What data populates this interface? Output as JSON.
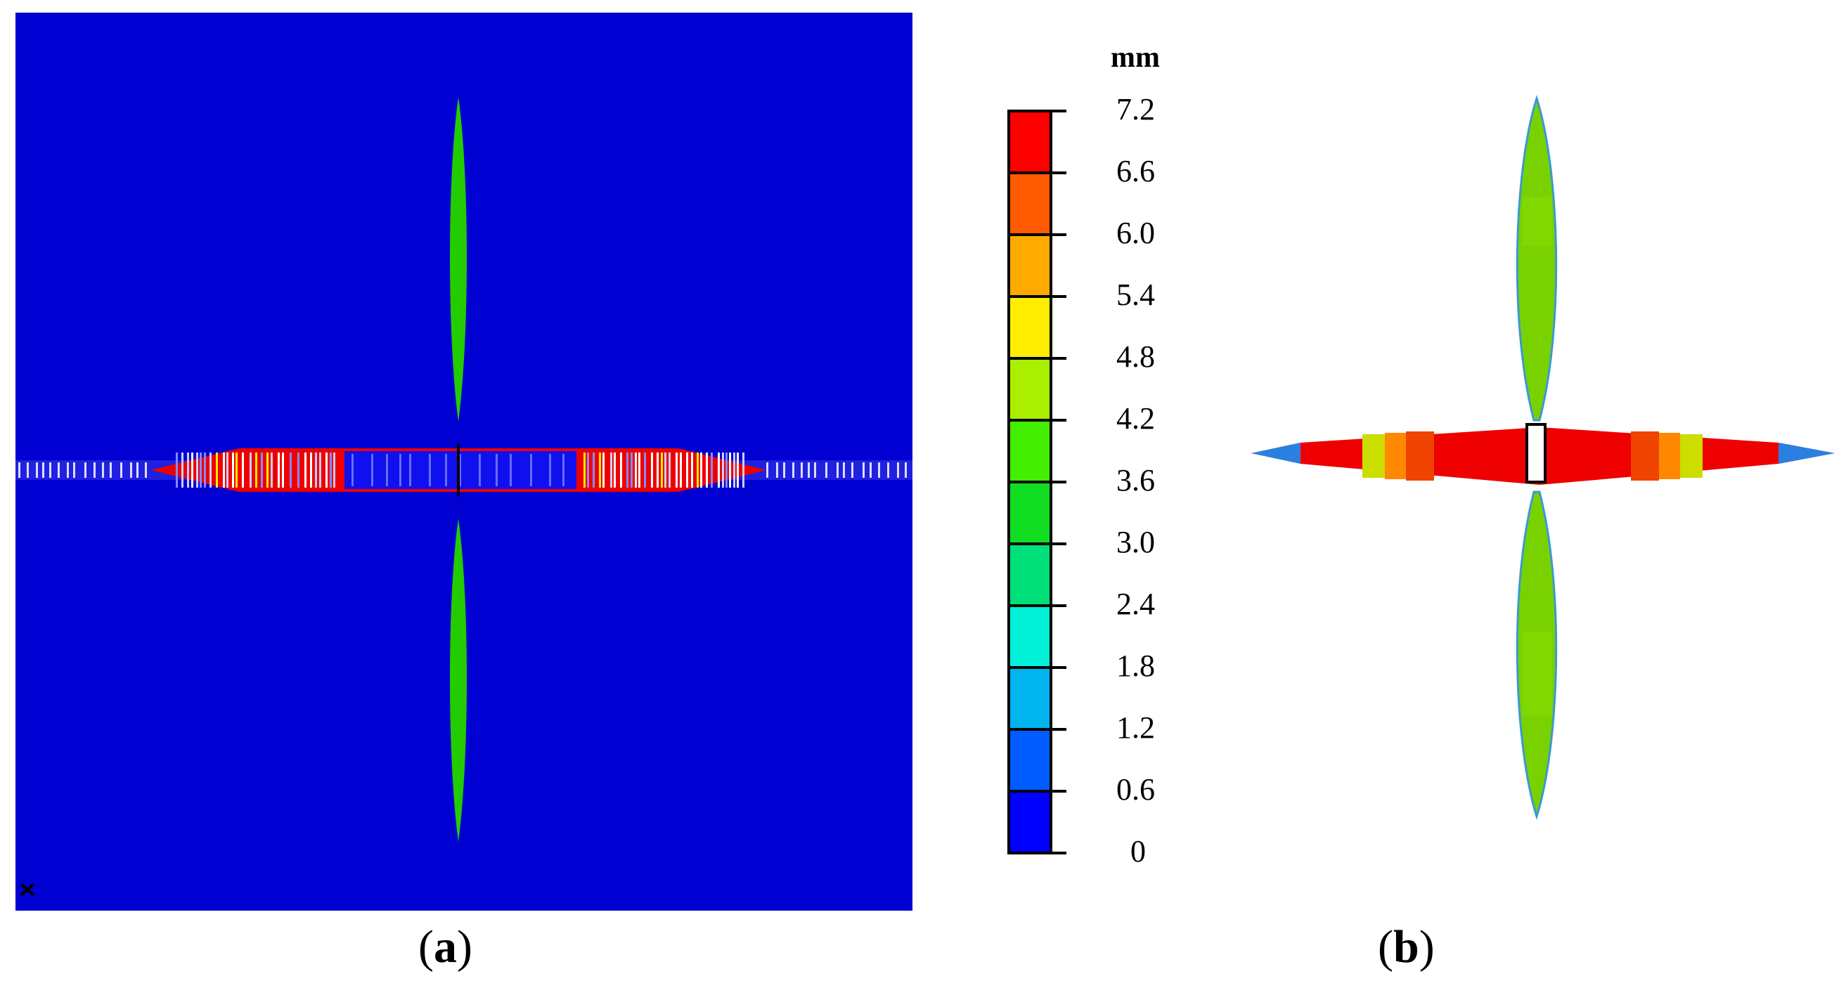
{
  "legend": {
    "unit": "mm",
    "levels": [
      "7.2",
      "6.6",
      "6.0",
      "5.4",
      "4.8",
      "4.2",
      "3.6",
      "3.0",
      "2.4",
      "1.8",
      "1.2",
      "0.6",
      "0"
    ],
    "band_colors": [
      "#ff0000",
      "#ff5a00",
      "#ffaa00",
      "#ffee00",
      "#aaee00",
      "#44ee00",
      "#11dd22",
      "#00e07a",
      "#00f0d8",
      "#00b4ee",
      "#005cff",
      "#0000ff"
    ]
  },
  "panels": {
    "a": {
      "open": "(",
      "letter": "a",
      "close": ")",
      "background": "#0000d2"
    },
    "b": {
      "open": "(",
      "letter": "b",
      "close": ")"
    }
  },
  "colors": {
    "red": "#ee0000",
    "green": "#22cc00",
    "blue_band": "#0000ee",
    "white": "#ffffff"
  }
}
